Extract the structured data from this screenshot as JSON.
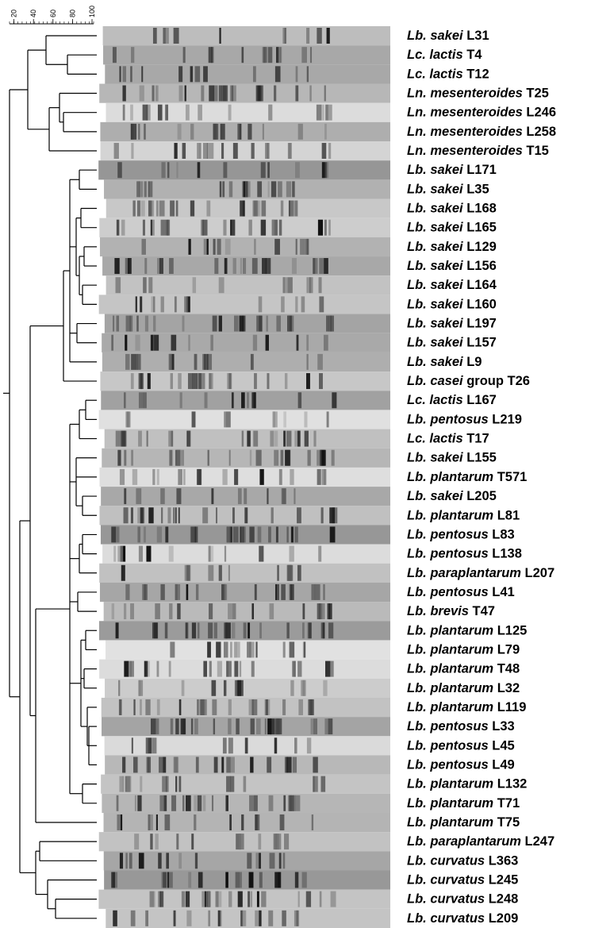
{
  "scale": {
    "ticks": [
      20,
      40,
      60,
      80,
      100
    ]
  },
  "labels": [
    {
      "taxon": "Lb. sakei",
      "strain": "L31"
    },
    {
      "taxon": "Lc. lactis",
      "strain": "T4"
    },
    {
      "taxon": "Lc. lactis",
      "strain": "T12"
    },
    {
      "taxon": "Ln. mesenteroides",
      "strain": "T25"
    },
    {
      "taxon": "Ln. mesenteroides",
      "strain": "L246"
    },
    {
      "taxon": "Ln. mesenteroides",
      "strain": "L258"
    },
    {
      "taxon": "Ln. mesenteroides",
      "strain": "T15"
    },
    {
      "taxon": "Lb. sakei",
      "strain": "L171"
    },
    {
      "taxon": "Lb. sakei",
      "strain": "L35"
    },
    {
      "taxon": "Lb. sakei",
      "strain": "L168"
    },
    {
      "taxon": "Lb. sakei",
      "strain": "L165"
    },
    {
      "taxon": "Lb. sakei",
      "strain": "L129"
    },
    {
      "taxon": "Lb. sakei",
      "strain": "L156"
    },
    {
      "taxon": "Lb. sakei",
      "strain": "L164"
    },
    {
      "taxon": "Lb. sakei",
      "strain": "L160"
    },
    {
      "taxon": "Lb. sakei",
      "strain": "L197"
    },
    {
      "taxon": "Lb. sakei",
      "strain": "L157"
    },
    {
      "taxon": "Lb. sakei",
      "strain": "L9"
    },
    {
      "taxon": "Lb. casei",
      "strain": "group T26"
    },
    {
      "taxon": "Lc. lactis",
      "strain": "L167"
    },
    {
      "taxon": "Lb. pentosus",
      "strain": "L219"
    },
    {
      "taxon": "Lc. lactis",
      "strain": "T17"
    },
    {
      "taxon": "Lb. sakei",
      "strain": "L155"
    },
    {
      "taxon": "Lb. plantarum",
      "strain": "T571"
    },
    {
      "taxon": "Lb. sakei",
      "strain": "L205"
    },
    {
      "taxon": "Lb. plantarum",
      "strain": "L81"
    },
    {
      "taxon": "Lb. pentosus",
      "strain": "L83"
    },
    {
      "taxon": "Lb. pentosus",
      "strain": "L138"
    },
    {
      "taxon": "Lb. paraplantarum",
      "strain": "L207"
    },
    {
      "taxon": "Lb. pentosus",
      "strain": "L41"
    },
    {
      "taxon": "Lb. brevis",
      "strain": "T47"
    },
    {
      "taxon": "Lb. plantarum",
      "strain": "L125"
    },
    {
      "taxon": "Lb. plantarum",
      "strain": "L79"
    },
    {
      "taxon": "Lb. plantarum",
      "strain": "T48"
    },
    {
      "taxon": "Lb. plantarum",
      "strain": "L32"
    },
    {
      "taxon": "Lb. plantarum",
      "strain": "L119"
    },
    {
      "taxon": "Lb. pentosus",
      "strain": "L33"
    },
    {
      "taxon": "Lb. pentosus",
      "strain": "L45"
    },
    {
      "taxon": "Lb. pentosus",
      "strain": "L49"
    },
    {
      "taxon": "Lb. plantarum",
      "strain": "L132"
    },
    {
      "taxon": "Lb. plantarum",
      "strain": "T71"
    },
    {
      "taxon": "Lb. plantarum",
      "strain": "T75"
    },
    {
      "taxon": "Lb. paraplantarum",
      "strain": "L247"
    },
    {
      "taxon": "Lb. curvatus",
      "strain": "L363"
    },
    {
      "taxon": "Lb. curvatus",
      "strain": "L245"
    },
    {
      "taxon": "Lb. curvatus",
      "strain": "L248"
    },
    {
      "taxon": "Lb. curvatus",
      "strain": "L209"
    }
  ]
}
